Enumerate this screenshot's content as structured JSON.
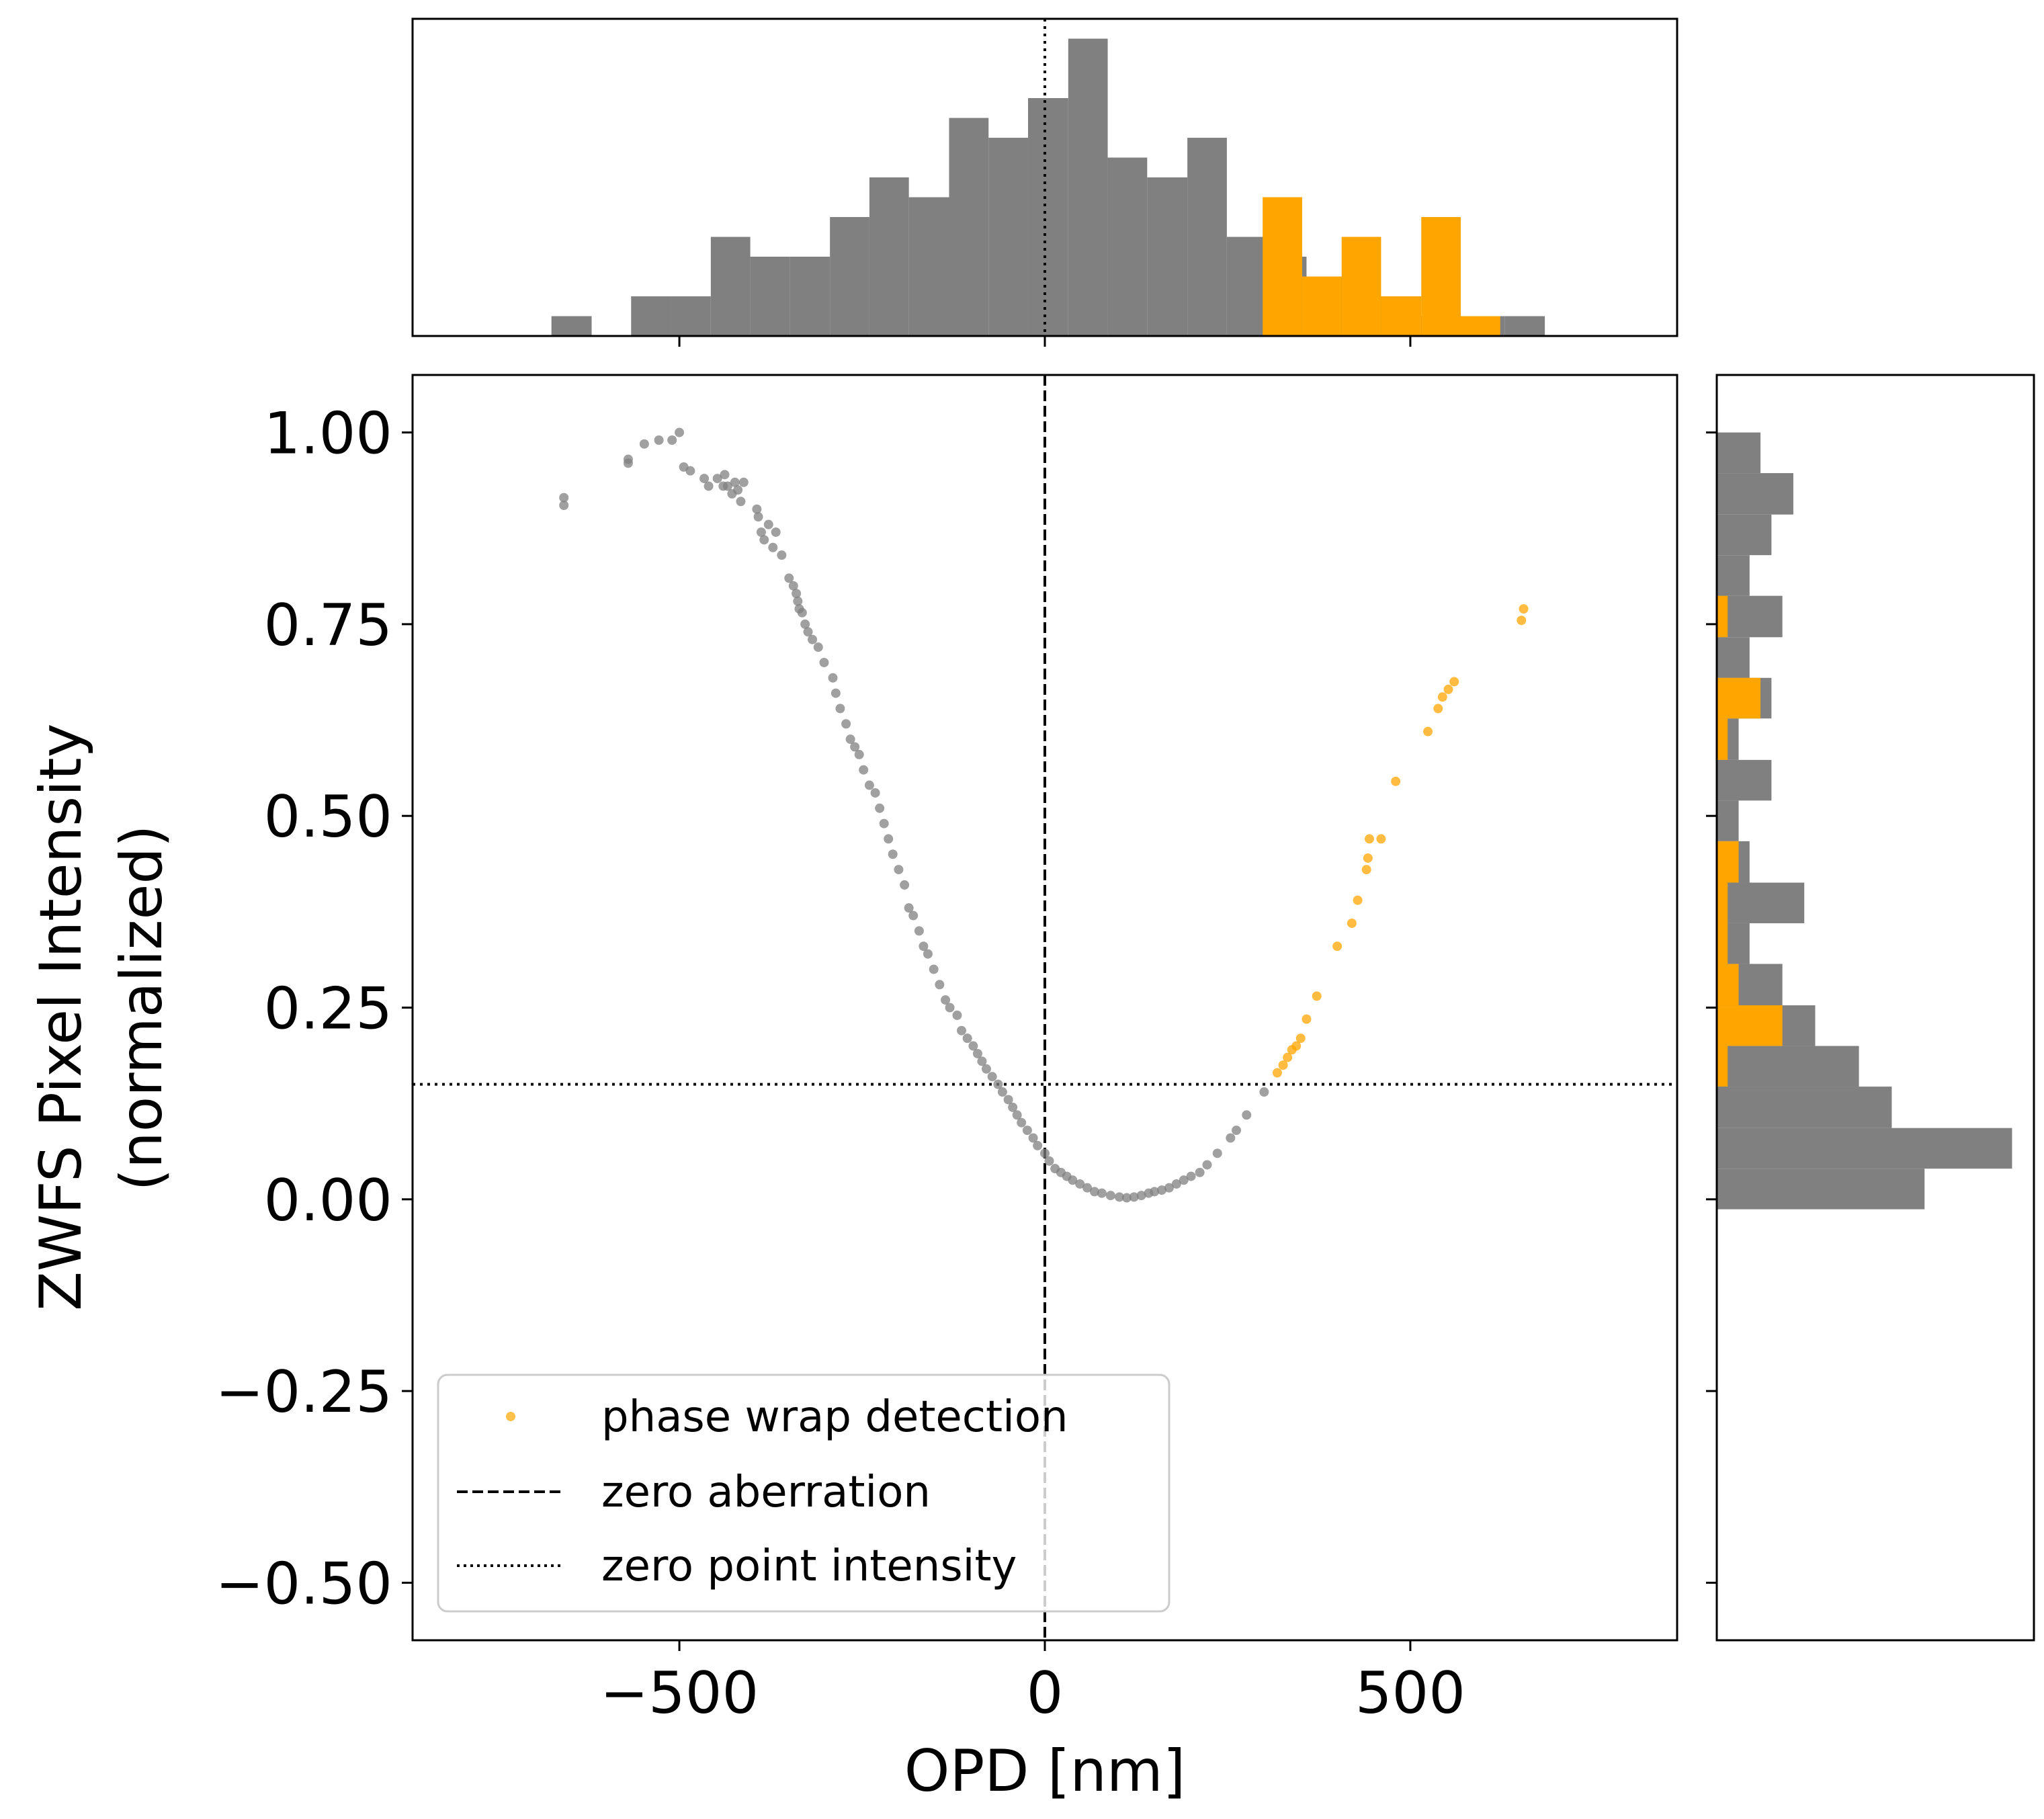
{
  "chart_data": {
    "type": "scatter",
    "xlabel": "OPD [nm]",
    "ylabel_lines": [
      "ZWFS Pixel Intensity",
      "(normalized)"
    ],
    "xlim": [
      -865,
      865
    ],
    "ylim": [
      -0.575,
      1.075
    ],
    "xticks": [
      -500,
      0,
      500
    ],
    "xtick_labels": [
      "−500",
      "0",
      "500"
    ],
    "yticks": [
      1.0,
      0.75,
      0.5,
      0.25,
      0.0,
      -0.25,
      -0.5
    ],
    "ytick_labels": [
      "1.00",
      "0.75",
      "0.50",
      "0.25",
      "0.00",
      "−0.25",
      "−0.50"
    ],
    "colors": {
      "normal": "#808080",
      "wrap": "#FFA500",
      "line": "#000000"
    },
    "zero_aberration_x": 0,
    "zero_point_intensity_y": 0.15,
    "wrap_threshold_opd": 298,
    "legend": {
      "placement": "lower-left",
      "entries": [
        {
          "label": "phase wrap detection",
          "style": "orange-dot"
        },
        {
          "label": "zero aberration",
          "style": "dashed"
        },
        {
          "label": "zero point intensity",
          "style": "dotted"
        }
      ]
    },
    "top_histogram": {
      "bin_edges": [
        -675,
        -620,
        -566,
        -512,
        -457,
        -403,
        -349,
        -294,
        -240,
        -186,
        -131,
        -77,
        -23,
        32,
        86,
        140,
        195,
        249,
        303,
        358,
        412,
        466,
        521,
        575,
        629,
        684
      ],
      "counts": [
        1,
        0,
        2,
        2,
        5,
        4,
        4,
        6,
        8,
        7,
        11,
        10,
        12,
        15,
        9,
        8,
        10,
        5,
        4,
        3,
        2,
        1,
        1,
        1,
        1
      ]
    },
    "top_histogram_wrap": {
      "bin_edges": [
        298,
        352,
        406,
        460,
        515,
        569,
        623
      ],
      "counts": [
        7,
        3,
        5,
        2,
        6,
        1
      ]
    },
    "right_histogram": {
      "bin_edges": [
        1.0,
        0.947,
        0.893,
        0.84,
        0.787,
        0.733,
        0.68,
        0.627,
        0.573,
        0.52,
        0.467,
        0.413,
        0.36,
        0.307,
        0.253,
        0.2,
        0.147,
        0.093,
        0.04,
        -0.013,
        -0.035
      ],
      "counts": [
        4,
        7,
        5,
        3,
        6,
        3,
        5,
        2,
        5,
        2,
        3,
        8,
        3,
        6,
        9,
        13,
        16,
        27,
        19,
        0
      ]
    },
    "right_histogram_wrap": {
      "bin_edges": [
        0.787,
        0.733,
        0.68,
        0.627,
        0.573,
        0.52,
        0.467,
        0.413,
        0.36,
        0.307,
        0.253,
        0.2,
        0.147
      ],
      "counts": [
        1,
        0,
        4,
        1,
        0,
        0,
        2,
        1,
        1,
        2,
        6,
        1
      ]
    },
    "series": [
      {
        "name": "",
        "color": "#808080",
        "x": [
          -658,
          -658,
          -570,
          -570,
          -548,
          -528,
          -510,
          -500,
          -494,
          -485,
          -466,
          -460,
          -448,
          -440,
          -438,
          -434,
          -428,
          -424,
          -420,
          -416,
          -412,
          -394,
          -392,
          -388,
          -384,
          -378,
          -372,
          -368,
          -360,
          -350,
          -344,
          -340,
          -338,
          -336,
          -332,
          -328,
          -324,
          -318,
          -310,
          -302,
          -290,
          -286,
          -280,
          -272,
          -266,
          -260,
          -254,
          -248,
          -240,
          -232,
          -226,
          -220,
          -214,
          -208,
          -200,
          -192,
          -186,
          -180,
          -172,
          -166,
          -160,
          -152,
          -144,
          -136,
          -130,
          -120,
          -114,
          -106,
          -98,
          -92,
          -86,
          -80,
          -72,
          -64,
          -58,
          -50,
          -44,
          -38,
          -32,
          -24,
          -16,
          -10,
          0,
          6,
          14,
          22,
          30,
          38,
          48,
          58,
          68,
          78,
          90,
          102,
          112,
          122,
          132,
          142,
          150,
          160,
          170,
          180,
          190,
          200,
          212,
          222,
          236,
          254,
          262,
          276,
          300
        ],
        "y": [
          0.905,
          0.915,
          0.96,
          0.965,
          0.985,
          0.99,
          0.99,
          1.0,
          0.955,
          0.95,
          0.94,
          0.93,
          0.94,
          0.93,
          0.945,
          0.93,
          0.92,
          0.935,
          0.925,
          0.91,
          0.935,
          0.9,
          0.89,
          0.87,
          0.86,
          0.88,
          0.85,
          0.87,
          0.84,
          0.81,
          0.8,
          0.79,
          0.78,
          0.77,
          0.765,
          0.75,
          0.74,
          0.73,
          0.72,
          0.7,
          0.68,
          0.66,
          0.64,
          0.62,
          0.6,
          0.59,
          0.58,
          0.56,
          0.54,
          0.53,
          0.51,
          0.49,
          0.47,
          0.45,
          0.43,
          0.41,
          0.38,
          0.37,
          0.35,
          0.33,
          0.32,
          0.3,
          0.28,
          0.26,
          0.25,
          0.24,
          0.22,
          0.21,
          0.2,
          0.19,
          0.18,
          0.17,
          0.16,
          0.15,
          0.14,
          0.13,
          0.12,
          0.11,
          0.1,
          0.09,
          0.08,
          0.07,
          0.06,
          0.05,
          0.04,
          0.035,
          0.03,
          0.025,
          0.02,
          0.015,
          0.01,
          0.008,
          0.005,
          0.003,
          0.002,
          0.003,
          0.005,
          0.008,
          0.01,
          0.012,
          0.015,
          0.02,
          0.025,
          0.03,
          0.035,
          0.045,
          0.06,
          0.08,
          0.09,
          0.11,
          0.14
        ]
      },
      {
        "name": "phase wrap detection",
        "color": "#FFA500",
        "x": [
          318,
          326,
          332,
          338,
          344,
          350,
          358,
          372,
          400,
          420,
          428,
          440,
          442,
          444,
          460,
          480,
          524,
          538,
          544,
          552,
          560,
          652,
          655
        ],
        "y": [
          0.165,
          0.175,
          0.185,
          0.195,
          0.2,
          0.21,
          0.235,
          0.265,
          0.33,
          0.36,
          0.39,
          0.43,
          0.445,
          0.47,
          0.47,
          0.545,
          0.61,
          0.64,
          0.655,
          0.665,
          0.675,
          0.755,
          0.77
        ]
      }
    ]
  }
}
